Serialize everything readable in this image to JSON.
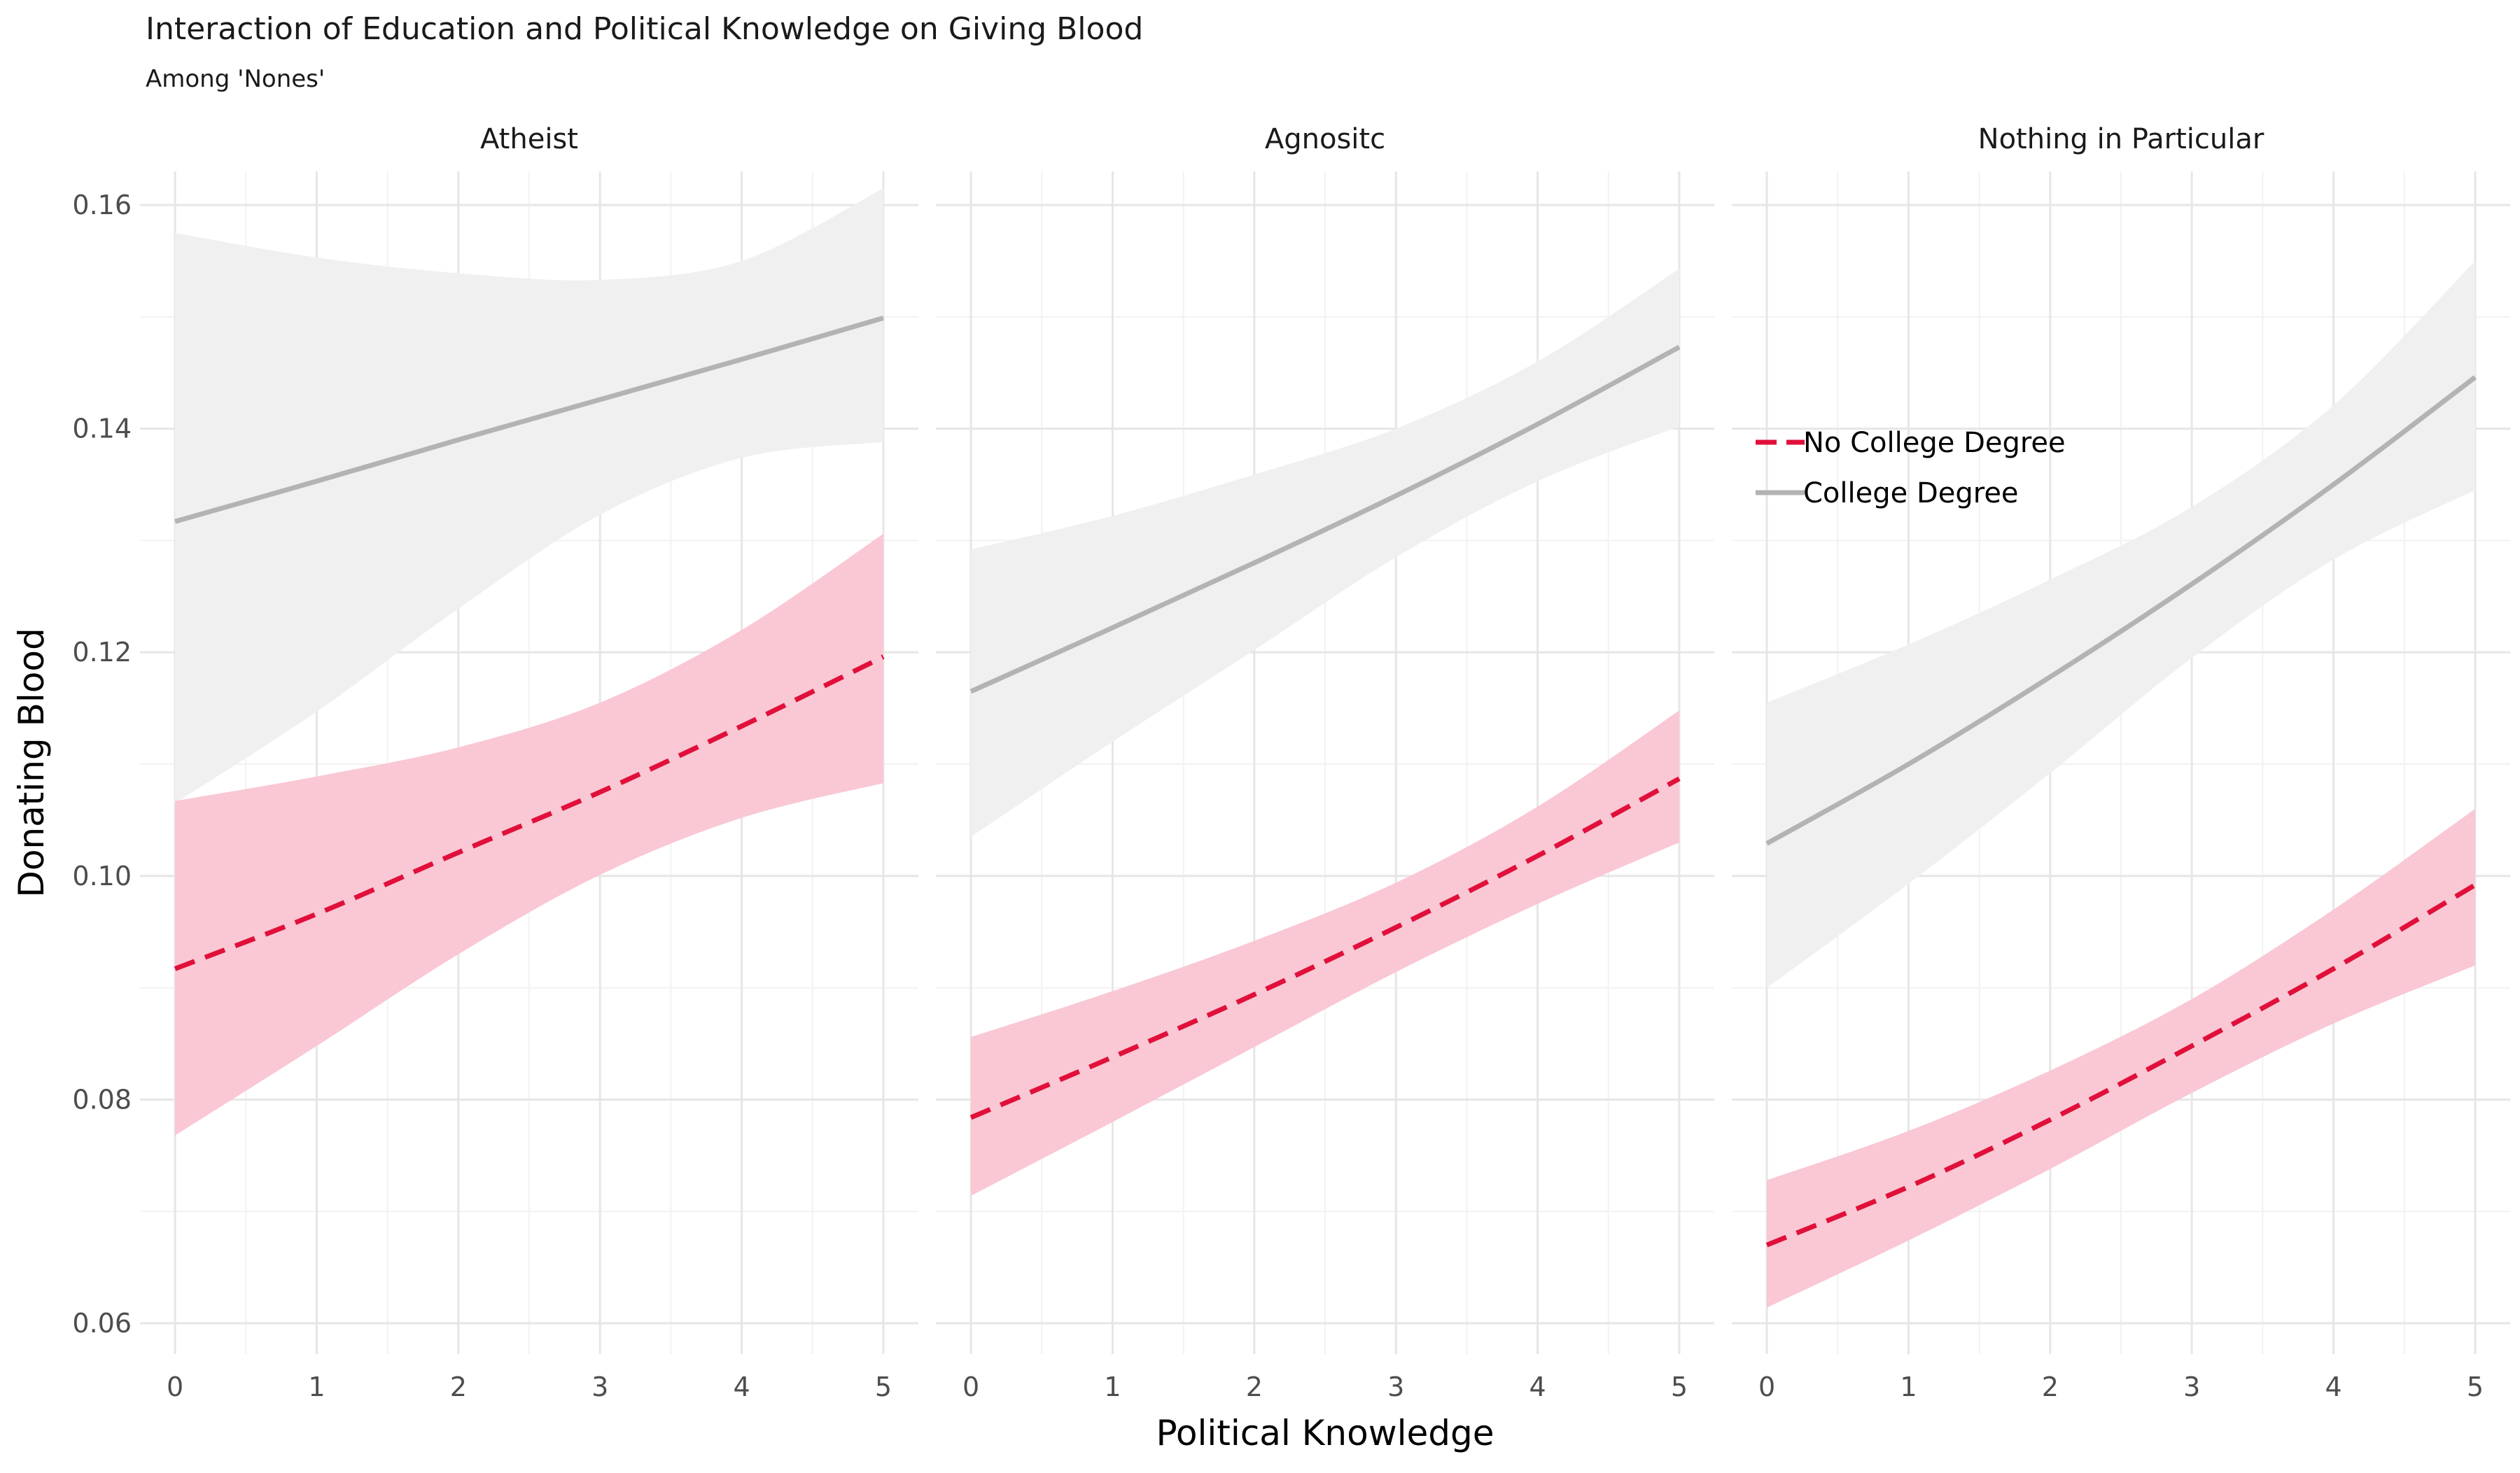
{
  "chart_data": {
    "type": "line",
    "title": "Interaction of Education and Political Knowledge on Giving Blood",
    "subtitle": "Among 'Nones'",
    "xlabel": "Political Knowledge",
    "ylabel": "Donating Blood",
    "xlim": [
      0,
      5
    ],
    "ylim": [
      0.06,
      0.16
    ],
    "x_ticks": [
      0,
      1,
      2,
      3,
      4,
      5
    ],
    "y_ticks": [
      0.06,
      0.08,
      0.1,
      0.12,
      0.14,
      0.16
    ],
    "y_tick_labels": [
      "0.06",
      "0.08",
      "0.10",
      "0.12",
      "0.14",
      "0.16"
    ],
    "grid": true,
    "legend_position": "inside first-row right panel, upper-left",
    "legend": [
      {
        "name": "No College Degree",
        "color": "#e0103a",
        "line": "dashed"
      },
      {
        "name": "College Degree",
        "color": "#b3b3b3",
        "line": "solid"
      }
    ],
    "band_colors": {
      "No College Degree": "#f9c8d4",
      "College Degree": "#f0f0f0"
    },
    "x": [
      0,
      1,
      2,
      3,
      4,
      5
    ],
    "panels": [
      {
        "title": "Atheist",
        "series": [
          {
            "name": "College Degree",
            "values": [
              0.1317,
              0.1353,
              0.139,
              0.1426,
              0.1462,
              0.1499
            ],
            "lower": [
              0.1065,
              0.1147,
              0.1239,
              0.1323,
              0.1374,
              0.1388
            ],
            "upper": [
              0.1575,
              0.1553,
              0.1539,
              0.1533,
              0.155,
              0.1615
            ]
          },
          {
            "name": "No College Degree",
            "values": [
              0.0917,
              0.0966,
              0.1021,
              0.1075,
              0.1134,
              0.1196
            ],
            "lower": [
              0.0768,
              0.0848,
              0.093,
              0.1001,
              0.1052,
              0.1083
            ],
            "upper": [
              0.1067,
              0.1089,
              0.1115,
              0.1155,
              0.122,
              0.1306
            ]
          }
        ]
      },
      {
        "title": "Agnositc",
        "series": [
          {
            "name": "College Degree",
            "values": [
              0.1165,
              0.1222,
              0.128,
              0.134,
              0.1404,
              0.1473
            ],
            "lower": [
              0.1035,
              0.112,
              0.1202,
              0.1285,
              0.1353,
              0.1402
            ],
            "upper": [
              0.1292,
              0.1322,
              0.1359,
              0.14,
              0.146,
              0.1543
            ]
          },
          {
            "name": "No College Degree",
            "values": [
              0.0784,
              0.0838,
              0.0894,
              0.0954,
              0.1018,
              0.1087
            ],
            "lower": [
              0.0714,
              0.078,
              0.0847,
              0.0914,
              0.0975,
              0.103
            ],
            "upper": [
              0.0856,
              0.0897,
              0.0942,
              0.0994,
              0.1062,
              0.1148
            ]
          }
        ]
      },
      {
        "title": "Nothing in Particular",
        "series": [
          {
            "name": "College Degree",
            "values": [
              0.1029,
              0.11,
              0.1178,
              0.1261,
              0.135,
              0.1446
            ],
            "lower": [
              0.09,
              0.0993,
              0.1092,
              0.1195,
              0.1283,
              0.1345
            ],
            "upper": [
              0.1155,
              0.1207,
              0.1265,
              0.133,
              0.1421,
              0.155
            ]
          },
          {
            "name": "No College Degree",
            "values": [
              0.067,
              0.0722,
              0.0782,
              0.0848,
              0.0917,
              0.0992
            ],
            "lower": [
              0.0614,
              0.0674,
              0.0738,
              0.0806,
              0.0868,
              0.092
            ],
            "upper": [
              0.0728,
              0.0772,
              0.0826,
              0.089,
              0.097,
              0.106
            ]
          }
        ]
      }
    ]
  }
}
